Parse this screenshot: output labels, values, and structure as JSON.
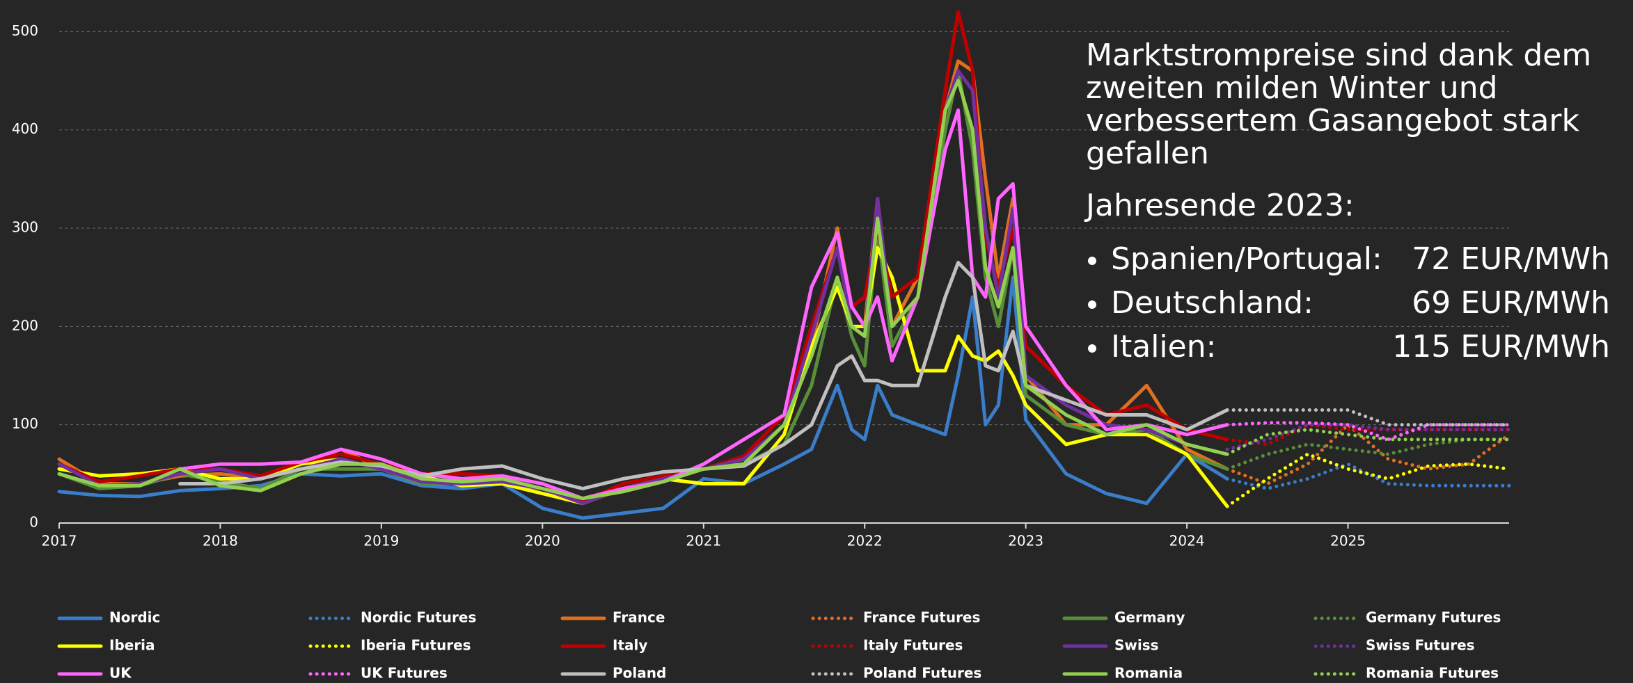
{
  "chart_data": {
    "type": "line",
    "x": [
      2017,
      2017.25,
      2017.5,
      2017.75,
      2018,
      2018.25,
      2018.5,
      2018.75,
      2019,
      2019.25,
      2019.5,
      2019.75,
      2020,
      2020.25,
      2020.5,
      2020.75,
      2021,
      2021.25,
      2021.5,
      2021.67,
      2021.83,
      2021.92,
      2022,
      2022.08,
      2022.17,
      2022.33,
      2022.5,
      2022.58,
      2022.67,
      2022.75,
      2022.83,
      2022.92,
      2023,
      2023.25,
      2023.5,
      2023.75,
      2024,
      2024.25
    ],
    "xlim": [
      2017,
      2026
    ],
    "xticks": [
      2017,
      2018,
      2019,
      2020,
      2021,
      2022,
      2023,
      2024,
      2025
    ],
    "ylim": [
      0,
      530
    ],
    "yticks": [
      0,
      100,
      200,
      300,
      400,
      500
    ],
    "grid": true,
    "legend": "bottom",
    "series": [
      {
        "name": "Nordic",
        "color": "#3a7dc9",
        "style": "solid",
        "values": [
          32,
          28,
          27,
          33,
          35,
          38,
          50,
          48,
          50,
          38,
          35,
          40,
          15,
          5,
          10,
          15,
          45,
          40,
          60,
          75,
          140,
          95,
          85,
          140,
          110,
          100,
          90,
          150,
          230,
          100,
          120,
          250,
          105,
          50,
          30,
          20,
          70,
          45
        ]
      },
      {
        "name": "Nordic Futures",
        "color": "#3a7dc9",
        "style": "dotted",
        "x": [
          2024.25,
          2024.5,
          2024.75,
          2025,
          2025.25,
          2025.5,
          2025.75,
          2026
        ],
        "values": [
          45,
          35,
          45,
          60,
          40,
          38,
          38,
          38
        ]
      },
      {
        "name": "France",
        "color": "#e0701f",
        "style": "solid",
        "values": [
          65,
          40,
          40,
          48,
          50,
          45,
          60,
          75,
          55,
          40,
          42,
          40,
          35,
          20,
          35,
          45,
          55,
          65,
          100,
          180,
          300,
          220,
          200,
          330,
          200,
          250,
          420,
          470,
          460,
          350,
          250,
          330,
          150,
          100,
          100,
          140,
          75,
          55
        ]
      },
      {
        "name": "France Futures",
        "color": "#e0701f",
        "style": "dotted",
        "x": [
          2024.25,
          2024.5,
          2024.75,
          2025,
          2025.25,
          2025.5,
          2025.75,
          2026
        ],
        "values": [
          55,
          40,
          60,
          100,
          65,
          55,
          60,
          90
        ]
      },
      {
        "name": "Germany",
        "color": "#5a8f3a",
        "style": "solid",
        "values": [
          50,
          35,
          38,
          50,
          42,
          35,
          55,
          55,
          55,
          40,
          40,
          42,
          35,
          20,
          35,
          45,
          55,
          60,
          80,
          140,
          250,
          190,
          160,
          300,
          180,
          230,
          400,
          460,
          380,
          250,
          200,
          280,
          130,
          100,
          90,
          95,
          70,
          55
        ]
      },
      {
        "name": "Germany Futures",
        "color": "#5a8f3a",
        "style": "dotted",
        "x": [
          2024.25,
          2024.5,
          2024.75,
          2025,
          2025.25,
          2025.5,
          2025.75,
          2026
        ],
        "values": [
          55,
          70,
          80,
          75,
          70,
          80,
          85,
          85
        ]
      },
      {
        "name": "Iberia",
        "color": "#ffff00",
        "style": "solid",
        "values": [
          55,
          48,
          50,
          55,
          45,
          45,
          60,
          65,
          55,
          48,
          38,
          40,
          30,
          20,
          35,
          45,
          40,
          40,
          90,
          180,
          240,
          200,
          200,
          280,
          250,
          155,
          155,
          190,
          170,
          165,
          175,
          150,
          120,
          80,
          90,
          90,
          70,
          17
        ]
      },
      {
        "name": "Iberia Futures",
        "color": "#ffff00",
        "style": "dotted",
        "x": [
          2024.25,
          2024.5,
          2024.75,
          2025,
          2025.25,
          2025.5,
          2025.75,
          2026
        ],
        "values": [
          17,
          45,
          70,
          55,
          45,
          58,
          60,
          55
        ]
      },
      {
        "name": "Italy",
        "color": "#c00000",
        "style": "solid",
        "values": [
          60,
          42,
          48,
          55,
          55,
          48,
          62,
          70,
          60,
          50,
          50,
          48,
          40,
          22,
          40,
          48,
          55,
          68,
          110,
          200,
          280,
          220,
          230,
          300,
          230,
          250,
          440,
          520,
          460,
          290,
          240,
          300,
          180,
          140,
          110,
          120,
          95,
          85
        ]
      },
      {
        "name": "Italy Futures",
        "color": "#c00000",
        "style": "dotted",
        "x": [
          2024.25,
          2024.5,
          2024.75,
          2025,
          2025.25,
          2025.5,
          2025.75,
          2026
        ],
        "values": [
          85,
          80,
          100,
          95,
          95,
          95,
          95,
          95
        ]
      },
      {
        "name": "Swiss",
        "color": "#7030a0",
        "style": "solid",
        "values": [
          60,
          38,
          40,
          50,
          55,
          45,
          55,
          65,
          55,
          42,
          40,
          42,
          35,
          20,
          35,
          45,
          55,
          65,
          100,
          190,
          280,
          200,
          190,
          330,
          200,
          230,
          420,
          460,
          440,
          300,
          230,
          320,
          150,
          120,
          100,
          95,
          80,
          70
        ]
      },
      {
        "name": "Swiss Futures",
        "color": "#7030a0",
        "style": "dotted",
        "x": [
          2024.25,
          2024.5,
          2024.75,
          2025,
          2025.25,
          2025.5,
          2025.75,
          2026
        ],
        "values": [
          75,
          85,
          100,
          100,
          95,
          95,
          95,
          95
        ]
      },
      {
        "name": "UK",
        "color": "#ff66ff",
        "style": "solid",
        "values": [
          null,
          null,
          null,
          55,
          60,
          60,
          62,
          75,
          65,
          50,
          45,
          48,
          40,
          25,
          35,
          42,
          60,
          85,
          110,
          240,
          295,
          220,
          200,
          230,
          165,
          230,
          380,
          420,
          250,
          230,
          330,
          345,
          200,
          140,
          95,
          100,
          90,
          100
        ]
      },
      {
        "name": "UK Futures",
        "color": "#ff66ff",
        "style": "dotted",
        "x": [
          2024.25,
          2024.5,
          2024.75,
          2025,
          2025.25,
          2025.5,
          2025.75,
          2026
        ],
        "values": [
          100,
          102,
          102,
          100,
          85,
          100,
          100,
          100
        ]
      },
      {
        "name": "Poland",
        "color": "#c0c0c0",
        "style": "solid",
        "values": [
          null,
          null,
          null,
          40,
          40,
          45,
          55,
          62,
          58,
          48,
          55,
          58,
          45,
          35,
          45,
          52,
          55,
          58,
          80,
          100,
          160,
          170,
          145,
          145,
          140,
          140,
          230,
          265,
          250,
          160,
          155,
          195,
          140,
          125,
          110,
          110,
          95,
          115
        ]
      },
      {
        "name": "Poland Futures",
        "color": "#c0c0c0",
        "style": "dotted",
        "x": [
          2024.25,
          2024.5,
          2024.75,
          2025,
          2025.25,
          2025.5,
          2025.75,
          2026
        ],
        "values": [
          115,
          115,
          115,
          115,
          100,
          100,
          100,
          100
        ]
      },
      {
        "name": "Romania",
        "color": "#92d050",
        "style": "solid",
        "values": [
          50,
          38,
          38,
          55,
          38,
          33,
          50,
          60,
          60,
          45,
          42,
          45,
          35,
          25,
          32,
          42,
          55,
          60,
          100,
          170,
          250,
          200,
          190,
          310,
          200,
          230,
          420,
          450,
          400,
          260,
          220,
          280,
          140,
          110,
          90,
          100,
          80,
          70
        ]
      },
      {
        "name": "Romania Futures",
        "color": "#92d050",
        "style": "dotted",
        "x": [
          2024.25,
          2024.5,
          2024.75,
          2025,
          2025.25,
          2025.5,
          2025.75,
          2026
        ],
        "values": [
          70,
          90,
          95,
          90,
          85,
          85,
          85,
          85
        ]
      }
    ],
    "annotation": {
      "lines": [
        "Marktstrompreise sind dank dem",
        "zweiten milden Winter und",
        "verbessertem Gasangebot stark",
        "gefallen"
      ],
      "subheading": "Jahresende 2023:",
      "items": [
        {
          "label": "Spanien/Portugal:",
          "value": "72 EUR/MWh"
        },
        {
          "label": "Deutschland:",
          "value": "69 EUR/MWh"
        },
        {
          "label": "Italien:",
          "value": "115 EUR/MWh"
        }
      ]
    }
  }
}
